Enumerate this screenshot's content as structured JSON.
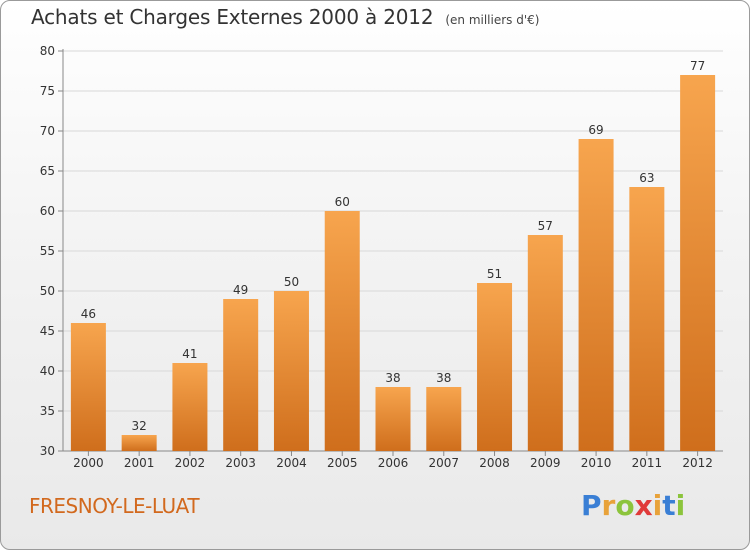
{
  "header": {
    "title": "Achats et Charges Externes 2000 à 2012",
    "subtitle": "(en milliers d'€)"
  },
  "footer": {
    "place": "FRESNOY-LE-LUAT",
    "logo_text": "Proxiti",
    "logo_colors": [
      "#3a7fd5",
      "#e8a23a",
      "#8cc43c",
      "#e03a3a",
      "#e8a23a",
      "#3a7fd5",
      "#8cc43c"
    ]
  },
  "colors": {
    "bar_top": "#f7a54e",
    "bar_bottom": "#cf6e1c",
    "place": "#d2691e",
    "axis": "#888888",
    "grid": "#d8d8d8"
  },
  "chart_data": {
    "type": "bar",
    "title": "Achats et Charges Externes 2000 à 2012",
    "subtitle": "(en milliers d'€)",
    "categories": [
      "2000",
      "2001",
      "2002",
      "2003",
      "2004",
      "2005",
      "2006",
      "2007",
      "2008",
      "2009",
      "2010",
      "2011",
      "2012"
    ],
    "values": [
      46,
      32,
      41,
      49,
      50,
      60,
      38,
      38,
      51,
      57,
      69,
      63,
      77
    ],
    "ylim": [
      30,
      80
    ],
    "yticks": [
      30,
      35,
      40,
      45,
      50,
      55,
      60,
      65,
      70,
      75,
      80
    ],
    "xlabel": "",
    "ylabel": "",
    "grid": true,
    "data_labels": true
  }
}
